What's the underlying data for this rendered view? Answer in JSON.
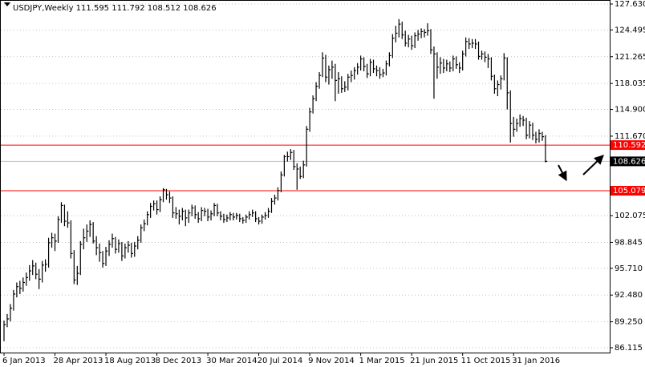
{
  "chart_data": {
    "type": "ohlc",
    "title": "USDJPY,Weekly  111.595 111.792 108.512 108.626",
    "categories": [
      "6 Jan 2013",
      null,
      null,
      null,
      null,
      null,
      null,
      null,
      null,
      null,
      null,
      null,
      null,
      null,
      null,
      null,
      "28 Apr 2013",
      null,
      null,
      null,
      null,
      null,
      null,
      null,
      null,
      null,
      null,
      null,
      null,
      null,
      null,
      null,
      "18 Aug 2013",
      null,
      null,
      null,
      null,
      null,
      null,
      null,
      null,
      null,
      null,
      null,
      null,
      null,
      null,
      null,
      "8 Dec 2013",
      null,
      null,
      null,
      null,
      null,
      null,
      null,
      null,
      null,
      null,
      null,
      null,
      null,
      null,
      null,
      "30 Mar 2014",
      null,
      null,
      null,
      null,
      null,
      null,
      null,
      null,
      null,
      null,
      null,
      null,
      null,
      null,
      null,
      "20 Jul 2014",
      null,
      null,
      null,
      null,
      null,
      null,
      null,
      null,
      null,
      null,
      null,
      null,
      null,
      null,
      null,
      "9 Nov 2014",
      null,
      null,
      null,
      null,
      null,
      null,
      null,
      null,
      null,
      null,
      null,
      null,
      null,
      null,
      null,
      "1 Mar 2015",
      null,
      null,
      null,
      null,
      null,
      null,
      null,
      null,
      null,
      null,
      null,
      null,
      null,
      null,
      null,
      "21 Jun 2015",
      null,
      null,
      null,
      null,
      null,
      null,
      null,
      null,
      null,
      null,
      null,
      null,
      null,
      null,
      null,
      "11 Oct 2015",
      null,
      null,
      null,
      null,
      null,
      null,
      null,
      null,
      null,
      null,
      null,
      null,
      null,
      null,
      null,
      "31 Jan 2016",
      null,
      null,
      null,
      null,
      null,
      null,
      null,
      null,
      null,
      null
    ],
    "high": [
      89.4,
      90.2,
      91.4,
      93.1,
      94.0,
      94.2,
      94.6,
      95.2,
      96.1,
      96.7,
      96.4,
      95.6,
      96.6,
      96.8,
      99.4,
      100.0,
      99.9,
      102.0,
      103.7,
      103.4,
      102.6,
      101.5,
      97.9,
      96.0,
      99.0,
      100.5,
      101.0,
      101.5,
      101.3,
      99.6,
      98.7,
      97.8,
      98.3,
      99.1,
      99.9,
      99.5,
      99.2,
      98.9,
      98.7,
      99.0,
      98.8,
      98.9,
      99.6,
      101.0,
      101.6,
      102.6,
      103.6,
      103.9,
      103.9,
      104.4,
      105.4,
      105.3,
      105.0,
      104.4,
      103.1,
      102.8,
      103.0,
      102.8,
      102.8,
      103.4,
      103.3,
      102.5,
      103.1,
      103.0,
      102.9,
      102.7,
      103.6,
      103.5,
      102.6,
      102.3,
      102.2,
      102.5,
      102.4,
      102.4,
      102.3,
      101.9,
      102.2,
      102.6,
      102.8,
      102.6,
      101.9,
      102.2,
      102.5,
      103.0,
      104.2,
      104.6,
      105.5,
      107.4,
      109.4,
      109.8,
      110.1,
      110.0,
      108.4,
      108.0,
      108.7,
      112.9,
      115.1,
      116.6,
      118.2,
      119.4,
      121.8,
      121.5,
      120.2,
      120.8,
      120.4,
      119.4,
      118.9,
      118.3,
      119.2,
      119.6,
      120.0,
      120.5,
      121.4,
      121.2,
      120.4,
      121.0,
      120.9,
      120.2,
      120.0,
      119.8,
      120.8,
      121.8,
      124.0,
      125.0,
      125.8,
      125.5,
      124.4,
      123.9,
      123.8,
      124.2,
      124.5,
      124.7,
      124.6,
      125.3,
      124.6,
      122.5,
      121.8,
      121.2,
      121.0,
      120.9,
      120.7,
      121.4,
      121.3,
      120.6,
      122.0,
      123.6,
      123.5,
      123.4,
      123.4,
      123.1,
      122.0,
      121.9,
      121.6,
      121.2,
      119.1,
      118.4,
      119.0,
      121.7,
      121.2,
      117.2,
      114.0,
      113.8,
      114.3,
      114.1,
      113.9,
      113.5,
      113.3,
      112.2,
      112.5,
      112.2,
      111.792
    ],
    "low": [
      86.9,
      88.6,
      89.3,
      90.6,
      92.2,
      92.6,
      92.9,
      93.6,
      94.2,
      94.9,
      94.4,
      93.2,
      94.0,
      95.3,
      95.8,
      98.2,
      97.8,
      98.8,
      101.2,
      100.8,
      100.6,
      96.9,
      93.8,
      93.7,
      94.9,
      98.0,
      98.9,
      99.5,
      98.7,
      97.3,
      96.5,
      95.8,
      96.0,
      97.2,
      98.2,
      97.5,
      97.6,
      96.6,
      96.9,
      97.6,
      97.0,
      97.1,
      98.0,
      98.8,
      100.2,
      100.9,
      101.8,
      102.7,
      102.2,
      102.5,
      103.7,
      104.0,
      103.6,
      101.8,
      101.7,
      101.0,
      101.5,
      100.8,
      101.2,
      102.0,
      101.7,
      101.2,
      101.4,
      102.0,
      101.4,
      101.5,
      102.0,
      102.0,
      101.5,
      101.2,
      101.3,
      101.5,
      101.5,
      101.6,
      101.3,
      101.1,
      101.2,
      101.6,
      101.9,
      101.3,
      101.0,
      101.1,
      101.6,
      101.8,
      102.4,
      103.4,
      103.9,
      104.9,
      106.8,
      108.6,
      108.8,
      107.6,
      105.2,
      106.5,
      106.6,
      108.0,
      112.2,
      114.4,
      115.9,
      117.4,
      118.8,
      118.2,
      117.9,
      118.6,
      115.9,
      116.8,
      116.9,
      117.0,
      117.2,
      118.2,
      118.5,
      119.1,
      119.6,
      119.5,
      118.7,
      118.9,
      119.3,
      118.9,
      118.6,
      118.8,
      119.0,
      120.1,
      121.1,
      123.0,
      123.6,
      123.4,
      122.5,
      122.4,
      122.1,
      122.3,
      123.2,
      123.5,
      123.6,
      123.8,
      121.6,
      116.2,
      118.6,
      119.2,
      119.3,
      119.5,
      119.4,
      119.5,
      119.8,
      119.3,
      119.6,
      121.3,
      122.2,
      122.3,
      122.2,
      120.9,
      120.9,
      120.6,
      119.9,
      118.4,
      116.8,
      116.5,
      117.3,
      118.4,
      114.9,
      110.9,
      111.6,
      112.2,
      112.8,
      112.9,
      111.3,
      111.4,
      111.2,
      110.8,
      110.9,
      111.1,
      108.512
    ],
    "close": [
      88.9,
      89.6,
      90.9,
      92.6,
      93.5,
      93.3,
      94.0,
      94.6,
      95.4,
      96.0,
      95.0,
      94.4,
      96.1,
      96.2,
      98.8,
      99.4,
      99.0,
      101.6,
      103.3,
      101.4,
      101.2,
      97.5,
      94.3,
      95.1,
      98.6,
      99.4,
      100.2,
      101.0,
      99.0,
      98.2,
      97.6,
      96.3,
      97.8,
      98.6,
      99.3,
      98.0,
      98.7,
      97.2,
      98.2,
      98.5,
      97.5,
      98.4,
      99.1,
      100.6,
      101.1,
      102.2,
      103.2,
      103.5,
      102.8,
      104.0,
      105.2,
      104.6,
      104.2,
      102.4,
      102.3,
      102.0,
      102.6,
      101.8,
      102.4,
      103.0,
      102.2,
      101.7,
      102.7,
      102.6,
      101.9,
      102.3,
      103.3,
      102.4,
      102.0,
      101.6,
      101.8,
      102.2,
      101.9,
      102.1,
      101.7,
      101.5,
      101.9,
      102.2,
      102.4,
      101.7,
      101.4,
      101.9,
      102.1,
      102.6,
      103.8,
      104.2,
      105.1,
      107.0,
      109.2,
      109.2,
      109.7,
      108.0,
      107.7,
      106.8,
      108.2,
      112.5,
      114.6,
      116.2,
      117.7,
      119.0,
      121.1,
      118.8,
      119.7,
      120.0,
      118.4,
      118.6,
      117.4,
      117.6,
      118.8,
      119.0,
      119.6,
      120.0,
      121.0,
      120.1,
      119.2,
      120.6,
      119.8,
      119.6,
      119.1,
      119.3,
      120.4,
      121.4,
      123.5,
      124.1,
      125.2,
      123.9,
      122.9,
      123.4,
      122.6,
      123.8,
      124.0,
      124.3,
      124.2,
      124.4,
      122.1,
      121.6,
      120.0,
      120.5,
      119.9,
      120.4,
      119.9,
      121.0,
      120.3,
      119.9,
      121.6,
      123.1,
      122.8,
      122.9,
      122.8,
      121.3,
      121.6,
      121.2,
      121.0,
      118.9,
      117.4,
      117.9,
      118.6,
      121.1,
      116.9,
      113.2,
      112.5,
      113.2,
      113.8,
      113.6,
      111.8,
      113.0,
      111.8,
      111.3,
      112.0,
      111.6,
      108.626
    ],
    "color": "#000000",
    "ylim": [
      85.534,
      128.114
    ],
    "yticks": [
      {
        "value": 127.63,
        "label": "127.630"
      },
      124.495,
      121.265,
      118.035,
      {
        "value": 114.9,
        "label": "114.900"
      },
      {
        "value": 111.67,
        "label": "111.670"
      },
      102.075,
      98.845,
      {
        "value": 95.71,
        "label": "95.710"
      },
      {
        "value": 92.48,
        "label": "92.480"
      },
      {
        "value": 89.25,
        "label": "89.250"
      },
      86.115
    ],
    "grid": true,
    "levels": [
      110.592,
      105.079
    ],
    "level_color": "#ff0000",
    "bid": 108.626
  }
}
